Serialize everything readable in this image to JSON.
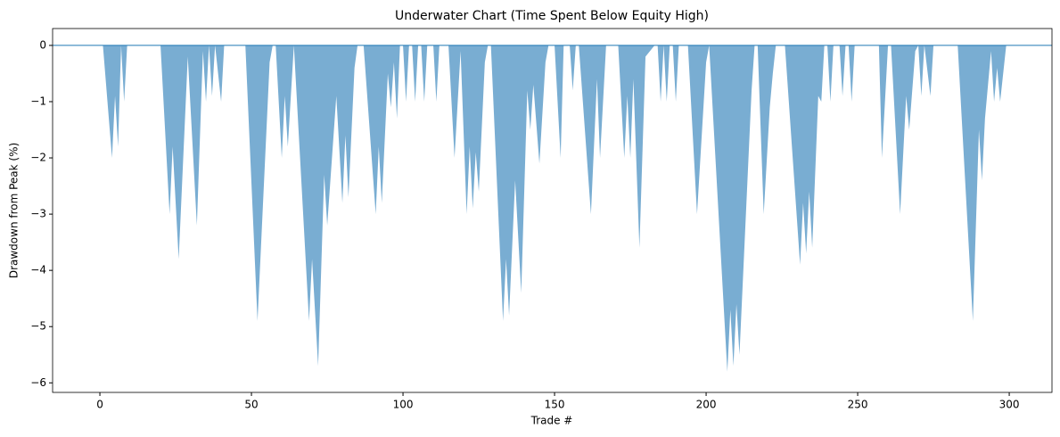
{
  "chart_data": {
    "type": "area",
    "title": "Underwater Chart (Time Spent Below Equity High)",
    "x_label": "Trade #",
    "y_label": "Drawdown from Peak (%)",
    "color": "#1f77b4",
    "fill_opacity": 0.6,
    "reference_line": 0,
    "xlim": [
      -15.6,
      314.1
    ],
    "ylim": [
      -6.17,
      0.3
    ],
    "xticks": [
      0,
      50,
      100,
      150,
      200,
      250,
      300
    ],
    "yticks": [
      0,
      {
        "value": -1,
        "label": "−1"
      },
      {
        "value": -2,
        "label": "−2"
      },
      {
        "value": -3,
        "label": "−3"
      },
      {
        "value": -4,
        "label": "−4"
      },
      {
        "value": -5,
        "label": "−5"
      },
      {
        "value": -6,
        "label": "−6"
      }
    ],
    "x": [
      0,
      1,
      4,
      5,
      6,
      7,
      8,
      9,
      20,
      23,
      24,
      26,
      29,
      32,
      34,
      35,
      36,
      37,
      38,
      40,
      41,
      48,
      52,
      56,
      57,
      58,
      60,
      61,
      62,
      64,
      69,
      70,
      72,
      74,
      75,
      78,
      80,
      81,
      82,
      84,
      85,
      87,
      91,
      92,
      93,
      95,
      96,
      97,
      98,
      99,
      100,
      101,
      102,
      103,
      104,
      105,
      106,
      107,
      108,
      110,
      111,
      112,
      115,
      117,
      119,
      121,
      122,
      123,
      124,
      125,
      127,
      128,
      129,
      133,
      134,
      135,
      137,
      139,
      141,
      142,
      143,
      145,
      147,
      148,
      150,
      152,
      153,
      155,
      156,
      157,
      158,
      162,
      164,
      165,
      167,
      171,
      173,
      174,
      175,
      176,
      178,
      180,
      183,
      184,
      185,
      186,
      187,
      188,
      189,
      190,
      191,
      194,
      197,
      200,
      201,
      207,
      208,
      209,
      210,
      211,
      215,
      216,
      217,
      219,
      221,
      222,
      223,
      226,
      231,
      232,
      233,
      234,
      235,
      237,
      238,
      239,
      240,
      241,
      242,
      244,
      245,
      246,
      247,
      248,
      249,
      257,
      258,
      260,
      261,
      264,
      266,
      267,
      269,
      270,
      271,
      272,
      274,
      275,
      283,
      288,
      290,
      291,
      292,
      294,
      295,
      296,
      297,
      299,
      300
    ],
    "values": [
      0,
      0,
      -2.0,
      -0.9,
      -1.8,
      0,
      -1.0,
      0,
      0,
      -3.0,
      -1.8,
      -3.8,
      -0.2,
      -3.2,
      -0.1,
      -1.0,
      0,
      -0.9,
      0,
      -1.0,
      0,
      0,
      -4.9,
      -0.3,
      0,
      0,
      -2.0,
      -0.9,
      -1.8,
      0,
      -4.9,
      -3.8,
      -5.7,
      -2.3,
      -3.2,
      -0.9,
      -2.8,
      -1.6,
      -2.7,
      -0.4,
      0,
      0,
      -3.0,
      -1.8,
      -2.8,
      -0.5,
      -1.1,
      -0.3,
      -1.3,
      0,
      0,
      -1.0,
      0,
      0,
      -1.0,
      0,
      0,
      -1.0,
      0,
      0,
      -1.0,
      0,
      0,
      -2.0,
      -0.1,
      -3.0,
      -1.8,
      -2.9,
      -1.9,
      -2.6,
      -0.3,
      0,
      0,
      -4.9,
      -3.8,
      -4.8,
      -2.4,
      -4.4,
      -0.8,
      -1.5,
      -0.7,
      -2.1,
      -0.3,
      0,
      0,
      -2.0,
      0,
      0,
      -0.8,
      0,
      0,
      -3.0,
      -0.6,
      -2.0,
      0,
      0,
      -2.0,
      -0.9,
      -2.0,
      -0.6,
      -3.6,
      -0.2,
      0,
      0,
      -1.0,
      0,
      -1.0,
      0,
      0,
      -1.0,
      0,
      0,
      -3.0,
      -0.3,
      0,
      -5.8,
      -4.7,
      -5.7,
      -4.6,
      -5.5,
      -0.8,
      0,
      0,
      -3.0,
      -1.1,
      -0.5,
      0,
      0,
      -3.9,
      -2.8,
      -3.7,
      -2.6,
      -3.6,
      -0.9,
      -1.0,
      0,
      0,
      -1.0,
      0,
      0,
      -0.9,
      0,
      0,
      -1.0,
      0,
      0,
      -2.0,
      0,
      0,
      -3.0,
      -0.9,
      -1.5,
      -0.1,
      0,
      -0.9,
      0,
      -0.9,
      0,
      0,
      -4.9,
      -1.5,
      -2.4,
      -1.3,
      -0.1,
      -1.0,
      -0.4,
      -1.0,
      0,
      0
    ]
  }
}
